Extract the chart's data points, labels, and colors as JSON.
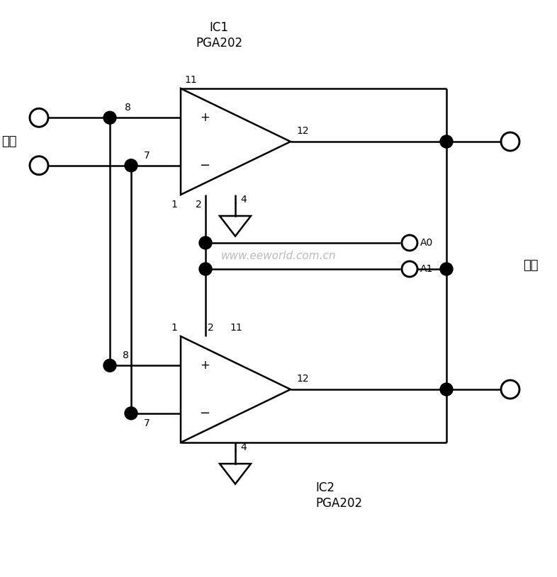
{
  "background_color": "#ffffff",
  "line_color": "#000000",
  "watermark": "www.eeworld.com.cn",
  "watermark_color": "#b0b0b0",
  "figsize": [
    7.86,
    8.15
  ],
  "dpi": 100,
  "font_cjk": "SimSun",
  "input_label": "输入",
  "output_label": "输出"
}
